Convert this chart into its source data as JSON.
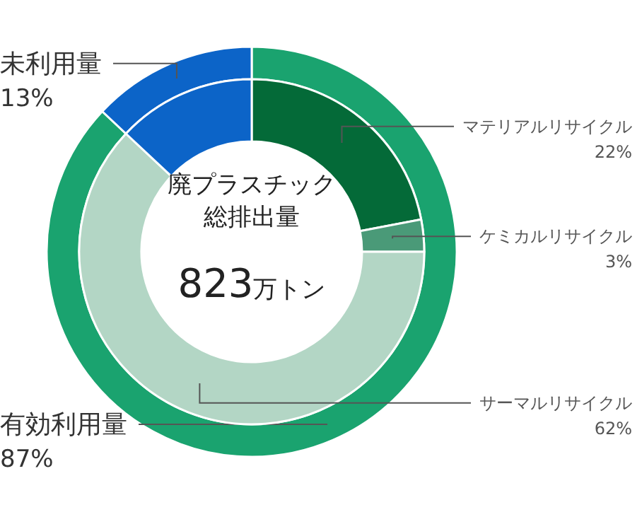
{
  "chart_data": [
    {
      "type": "donut",
      "categories": [
        "有効利用量",
        "未利用量"
      ],
      "values": [
        87,
        13
      ],
      "colors": [
        "#1aa36f",
        "#0c64c8"
      ],
      "value_labels": [
        "87%",
        "13%"
      ]
    },
    {
      "type": "donut",
      "title": "廃プラスチック総排出量",
      "annotations": [
        "823万トン"
      ],
      "categories": [
        "マテリアルリサイクル",
        "ケミカルリサイクル",
        "サーマルリサイクル",
        null
      ],
      "values": [
        22,
        3,
        62,
        13
      ],
      "colors": [
        "#046a38",
        "#4a9a78",
        "#b3d6c5",
        "#0c64c8"
      ],
      "value_labels": [
        "22%",
        "3%",
        "62%",
        null
      ]
    }
  ]
}
